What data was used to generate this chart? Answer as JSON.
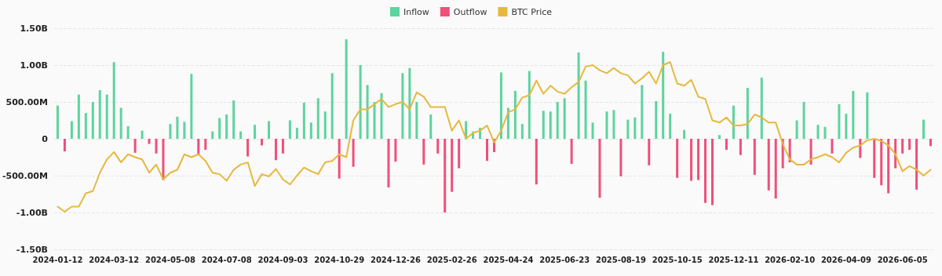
{
  "chart_data": {
    "type": "bar",
    "categories": [
      "2024-01-12",
      null,
      null,
      null,
      null,
      null,
      null,
      null,
      "2024-03-12",
      null,
      null,
      null,
      null,
      null,
      null,
      null,
      "2024-05-08",
      null,
      null,
      null,
      null,
      null,
      null,
      null,
      "2024-07-08",
      null,
      null,
      null,
      null,
      null,
      null,
      null,
      "2024-09-03",
      null,
      null,
      null,
      null,
      null,
      null,
      null,
      "2024-10-29",
      null,
      null,
      null,
      null,
      null,
      null,
      null,
      "2024-12-26",
      null,
      null,
      null,
      null,
      null,
      null,
      null,
      "2025-02-26",
      null,
      null,
      null,
      null,
      null,
      null,
      null,
      "2025-04-24",
      null,
      null,
      null,
      null,
      null,
      null,
      null,
      "2025-06-23",
      null,
      null,
      null,
      null,
      null,
      null,
      null,
      "2025-08-19",
      null,
      null,
      null,
      null,
      null,
      null,
      null,
      "2025-10-15",
      null,
      null,
      null,
      null,
      null,
      null,
      null,
      "2025-12-11",
      null,
      null,
      null,
      null,
      null,
      null,
      null,
      "2026-02-10",
      null,
      null,
      null,
      null,
      null,
      null,
      null,
      "2026-04-09",
      null,
      null,
      null,
      null,
      null,
      null,
      null,
      "2026-06-05",
      null,
      null,
      null,
      null
    ],
    "series": [
      {
        "name": "Inflow",
        "color": "#5dd39e",
        "values": [
          450000000.0,
          null,
          240000000.0,
          600000000.0,
          350000000.0,
          500000000.0,
          660000000.0,
          600000000.0,
          1040000000.0,
          420000000.0,
          170000000.0,
          null,
          110000000.0,
          null,
          null,
          null,
          200000000.0,
          300000000.0,
          230000000.0,
          880000000.0,
          null,
          null,
          100000000.0,
          280000000.0,
          330000000.0,
          520000000.0,
          100000000.0,
          null,
          190000000.0,
          null,
          240000000.0,
          null,
          null,
          250000000.0,
          150000000.0,
          490000000.0,
          220000000.0,
          550000000.0,
          370000000.0,
          890000000.0,
          null,
          1350000000.0,
          null,
          1000000000.0,
          730000000.0,
          500000000.0,
          620000000.0,
          null,
          null,
          890000000.0,
          960000000.0,
          500000000.0,
          null,
          330000000.0,
          null,
          null,
          null,
          null,
          240000000.0,
          100000000.0,
          150000000.0,
          null,
          null,
          900000000.0,
          420000000.0,
          650000000.0,
          200000000.0,
          920000000.0,
          null,
          380000000.0,
          370000000.0,
          500000000.0,
          550000000.0,
          null,
          1170000000.0,
          790000000.0,
          220000000.0,
          null,
          370000000.0,
          390000000.0,
          null,
          260000000.0,
          290000000.0,
          730000000.0,
          null,
          510000000.0,
          1180000000.0,
          340000000.0,
          null,
          120000000.0,
          null,
          null,
          null,
          null,
          50000000.0,
          null,
          450000000.0,
          null,
          690000000.0,
          null,
          830000000.0,
          null,
          null,
          null,
          null,
          250000000.0,
          500000000.0,
          null,
          190000000.0,
          160000000.0,
          null,
          470000000.0,
          340000000.0,
          650000000.0,
          null,
          630000000.0,
          null,
          null,
          null,
          null,
          null,
          null,
          null,
          260000000.0,
          null
        ]
      },
      {
        "name": "Outflow",
        "color": "#ef4f79",
        "values": [
          null,
          -170000000.0,
          null,
          null,
          null,
          null,
          null,
          null,
          null,
          null,
          null,
          -190000000.0,
          null,
          -70000000.0,
          -200000000.0,
          -560000000.0,
          null,
          null,
          null,
          null,
          -210000000.0,
          -150000000.0,
          null,
          null,
          null,
          null,
          null,
          -240000000.0,
          null,
          -90000000.0,
          null,
          -290000000.0,
          -200000000.0,
          null,
          null,
          null,
          null,
          null,
          null,
          null,
          -540000000.0,
          null,
          -380000000.0,
          null,
          null,
          null,
          null,
          -660000000.0,
          -310000000.0,
          null,
          null,
          null,
          -350000000.0,
          null,
          -200000000.0,
          -1000000000.0,
          -720000000.0,
          -400000000.0,
          null,
          null,
          null,
          -300000000.0,
          -180000000.0,
          null,
          null,
          null,
          null,
          null,
          -620000000.0,
          null,
          null,
          null,
          null,
          -340000000.0,
          null,
          null,
          null,
          -800000000.0,
          null,
          null,
          -510000000.0,
          null,
          null,
          null,
          -360000000.0,
          null,
          null,
          null,
          -530000000.0,
          null,
          -570000000.0,
          -560000000.0,
          -870000000.0,
          -900000000.0,
          null,
          -150000000.0,
          null,
          -220000000.0,
          null,
          -490000000.0,
          null,
          -700000000.0,
          -810000000.0,
          -400000000.0,
          -320000000.0,
          null,
          null,
          -350000000.0,
          null,
          null,
          -200000000.0,
          null,
          null,
          null,
          -260000000.0,
          null,
          -530000000.0,
          -630000000.0,
          -740000000.0,
          -400000000.0,
          -200000000.0,
          -150000000.0,
          -690000000.0,
          null,
          -100000000.0
        ]
      },
      {
        "name": "BTC Price",
        "type": "line",
        "color": "#e6b83c",
        "values": [
          -920000000.0,
          -990000000.0,
          -920000000.0,
          -920000000.0,
          -740000000.0,
          -710000000.0,
          -460000000.0,
          -280000000.0,
          -180000000.0,
          -320000000.0,
          -210000000.0,
          -250000000.0,
          -280000000.0,
          -460000000.0,
          -350000000.0,
          -550000000.0,
          -460000000.0,
          -420000000.0,
          -210000000.0,
          -250000000.0,
          -210000000.0,
          -300000000.0,
          -460000000.0,
          -480000000.0,
          -570000000.0,
          -420000000.0,
          -350000000.0,
          -320000000.0,
          -640000000.0,
          -480000000.0,
          -510000000.0,
          -410000000.0,
          -550000000.0,
          -620000000.0,
          -500000000.0,
          -390000000.0,
          -440000000.0,
          -480000000.0,
          -320000000.0,
          -300000000.0,
          -210000000.0,
          -250000000.0,
          250000000.0,
          400000000.0,
          400000000.0,
          470000000.0,
          540000000.0,
          430000000.0,
          470000000.0,
          500000000.0,
          400000000.0,
          630000000.0,
          570000000.0,
          430000000.0,
          430000000.0,
          430000000.0,
          110000000.0,
          250000000.0,
          0,
          80000000.0,
          110000000.0,
          180000000.0,
          -50000000.0,
          110000000.0,
          360000000.0,
          400000000.0,
          560000000.0,
          590000000.0,
          790000000.0,
          610000000.0,
          720000000.0,
          640000000.0,
          610000000.0,
          700000000.0,
          770000000.0,
          980000000.0,
          1000000000.0,
          930000000.0,
          890000000.0,
          960000000.0,
          890000000.0,
          860000000.0,
          750000000.0,
          820000000.0,
          910000000.0,
          750000000.0,
          1000000000.0,
          1040000000.0,
          750000000.0,
          720000000.0,
          800000000.0,
          570000000.0,
          540000000.0,
          250000000.0,
          220000000.0,
          290000000.0,
          180000000.0,
          180000000.0,
          200000000.0,
          330000000.0,
          290000000.0,
          220000000.0,
          220000000.0,
          -70000000.0,
          -280000000.0,
          -350000000.0,
          -350000000.0,
          -280000000.0,
          -250000000.0,
          -210000000.0,
          -250000000.0,
          -320000000.0,
          -190000000.0,
          -120000000.0,
          -90000000.0,
          -20000000.0,
          0,
          -30000000.0,
          -90000000.0,
          -210000000.0,
          -440000000.0,
          -370000000.0,
          -420000000.0,
          -500000000.0,
          -420000000.0
        ]
      }
    ],
    "ylim": [
      -1500000000.0,
      1500000000.0
    ],
    "yticks": [
      {
        "value": -1500000000.0,
        "label": "-1.50B"
      },
      {
        "value": -1000000000.0,
        "label": "-1.00B"
      },
      {
        "value": -500000000.0,
        "label": "-500.00M"
      },
      0,
      {
        "value": 500000000.0,
        "label": "500.00M"
      },
      {
        "value": 1000000000.0,
        "label": "1.00B"
      },
      {
        "value": 1500000000.0,
        "label": "1.50B"
      }
    ],
    "grid": "y",
    "legend": "top",
    "marker": "none",
    "line_style": "solid"
  }
}
